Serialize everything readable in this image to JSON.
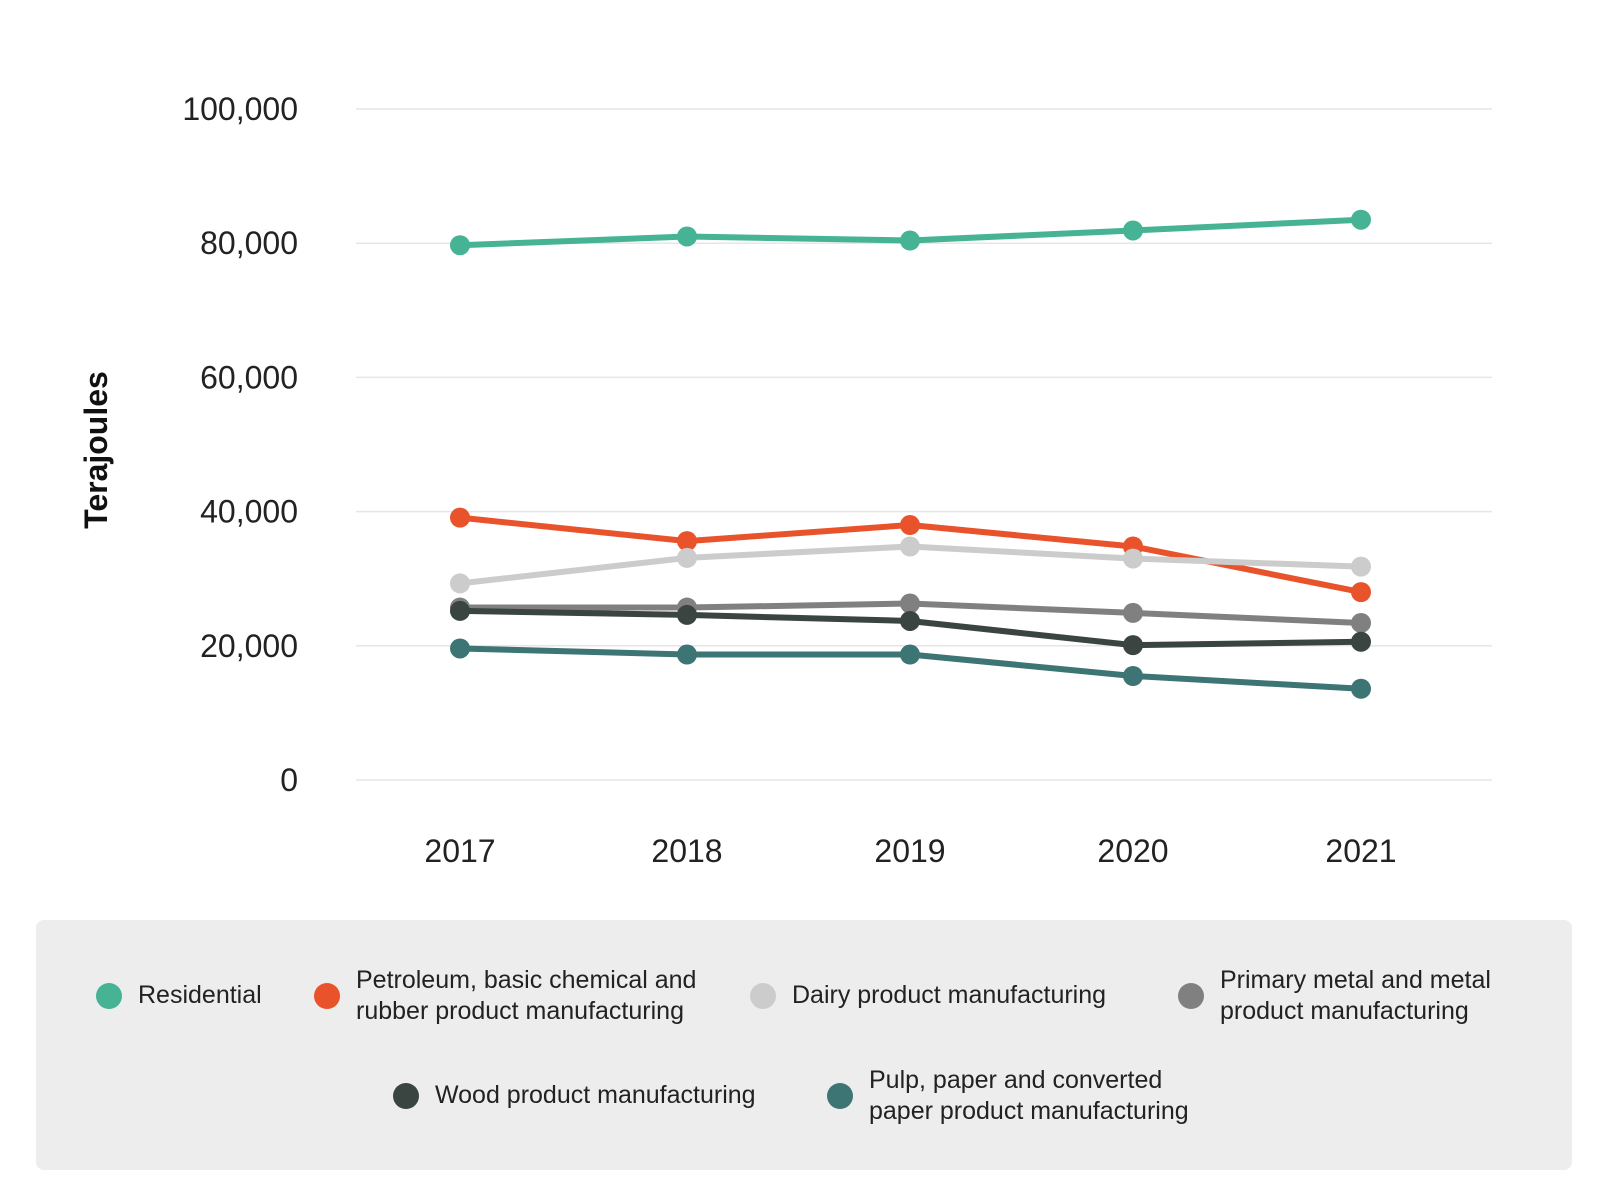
{
  "chart_data": {
    "type": "line",
    "title": "",
    "xlabel": "",
    "ylabel": "Terajoules",
    "ylim": [
      0,
      100000
    ],
    "yticks": [
      0,
      20000,
      40000,
      60000,
      80000,
      100000
    ],
    "ytick_labels": [
      "0",
      "20,000",
      "40,000",
      "60,000",
      "80,000",
      "100,000"
    ],
    "x": [
      "2017",
      "2018",
      "2019",
      "2020",
      "2021"
    ],
    "grid": true,
    "legend_position": "bottom",
    "series": [
      {
        "name": "Residential",
        "color": "#45b394",
        "values": [
          79700,
          81000,
          80400,
          81900,
          83500
        ]
      },
      {
        "name": "Petroleum, basic chemical and\nrubber product manufacturing",
        "color": "#e8532b",
        "values": [
          39100,
          35600,
          38000,
          34800,
          28000
        ]
      },
      {
        "name": "Dairy product manufacturing",
        "color": "#cccccc",
        "values": [
          29300,
          33100,
          34800,
          33000,
          31800
        ]
      },
      {
        "name": "Primary metal and metal\nproduct manufacturing",
        "color": "#808080",
        "values": [
          25700,
          25700,
          26300,
          24900,
          23400
        ]
      },
      {
        "name": "Wood product manufacturing",
        "color": "#3a4440",
        "values": [
          25200,
          24600,
          23700,
          20100,
          20600
        ]
      },
      {
        "name": "Pulp, paper and converted\npaper product manufacturing",
        "color": "#3d7474",
        "values": [
          19600,
          18700,
          18700,
          15500,
          13600
        ]
      }
    ]
  }
}
